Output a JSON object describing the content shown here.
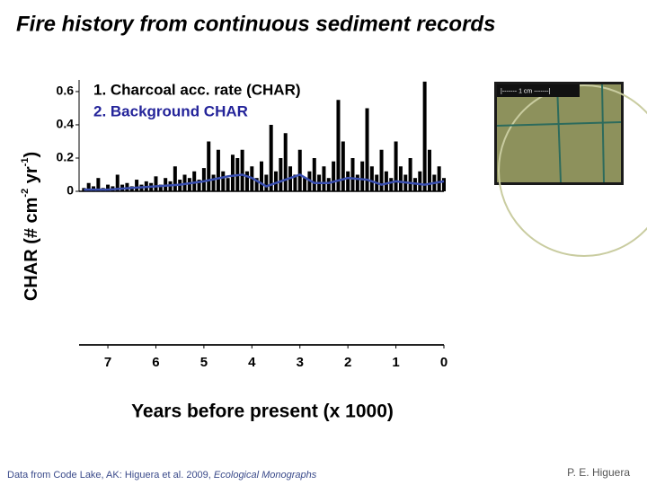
{
  "slide": {
    "title": "Fire history from continuous sediment records"
  },
  "photo": {
    "scale_label": "|------- 1 cm -------|"
  },
  "footer": {
    "source": "Data from Code Lake, AK: Higuera et al. 2009, ",
    "source_journal": "Ecological Monographs",
    "author": "P. E. Higuera"
  },
  "chart_data": {
    "type": "line",
    "ylabel": [
      "CHAR (# cm",
      "-2",
      " yr",
      "-1",
      ")"
    ],
    "xlabel": "Years before present (x 1000)",
    "xlim": [
      7.6,
      0
    ],
    "xticks": [
      7,
      6,
      5,
      4,
      3,
      2,
      1,
      0
    ],
    "ylim": [
      0,
      0.67
    ],
    "yticks": [
      0,
      0.2,
      0.4,
      0.6
    ],
    "x": [
      7.5,
      7.4,
      7.3,
      7.2,
      7.1,
      7.0,
      6.9,
      6.8,
      6.7,
      6.6,
      6.5,
      6.4,
      6.3,
      6.2,
      6.1,
      6.0,
      5.9,
      5.8,
      5.7,
      5.6,
      5.5,
      5.4,
      5.3,
      5.2,
      5.1,
      5.0,
      4.9,
      4.8,
      4.7,
      4.6,
      4.5,
      4.4,
      4.3,
      4.2,
      4.1,
      4.0,
      3.9,
      3.8,
      3.7,
      3.6,
      3.5,
      3.4,
      3.3,
      3.2,
      3.1,
      3.0,
      2.9,
      2.8,
      2.7,
      2.6,
      2.5,
      2.4,
      2.3,
      2.2,
      2.1,
      2.0,
      1.9,
      1.8,
      1.7,
      1.6,
      1.5,
      1.4,
      1.3,
      1.2,
      1.1,
      1.0,
      0.9,
      0.8,
      0.7,
      0.6,
      0.5,
      0.4,
      0.3,
      0.2,
      0.1,
      0.0
    ],
    "series": [
      {
        "name": "1. Charcoal acc. rate (CHAR)",
        "color": "#000000",
        "style": "spikes",
        "values": [
          0.02,
          0.05,
          0.03,
          0.08,
          0.02,
          0.04,
          0.03,
          0.1,
          0.04,
          0.05,
          0.03,
          0.07,
          0.04,
          0.06,
          0.05,
          0.09,
          0.04,
          0.08,
          0.06,
          0.15,
          0.07,
          0.1,
          0.08,
          0.12,
          0.07,
          0.14,
          0.3,
          0.1,
          0.25,
          0.12,
          0.08,
          0.22,
          0.2,
          0.25,
          0.12,
          0.15,
          0.08,
          0.18,
          0.1,
          0.4,
          0.12,
          0.2,
          0.35,
          0.15,
          0.1,
          0.25,
          0.08,
          0.12,
          0.2,
          0.1,
          0.15,
          0.08,
          0.18,
          0.55,
          0.3,
          0.12,
          0.2,
          0.1,
          0.18,
          0.5,
          0.15,
          0.1,
          0.25,
          0.12,
          0.08,
          0.3,
          0.15,
          0.1,
          0.2,
          0.08,
          0.12,
          0.66,
          0.25,
          0.1,
          0.15,
          0.08
        ]
      },
      {
        "name": "2. Background CHAR",
        "color": "#3a4fb0",
        "label_color": "#24249a",
        "style": "line",
        "x": [
          7.5,
          7.0,
          6.5,
          6.0,
          5.5,
          5.0,
          4.5,
          4.2,
          4.0,
          3.7,
          3.3,
          3.0,
          2.7,
          2.4,
          2.0,
          1.6,
          1.3,
          1.0,
          0.7,
          0.4,
          0.0
        ],
        "values": [
          0.01,
          0.01,
          0.02,
          0.03,
          0.04,
          0.06,
          0.09,
          0.1,
          0.08,
          0.03,
          0.07,
          0.1,
          0.05,
          0.05,
          0.08,
          0.07,
          0.04,
          0.06,
          0.05,
          0.04,
          0.06
        ]
      }
    ]
  }
}
